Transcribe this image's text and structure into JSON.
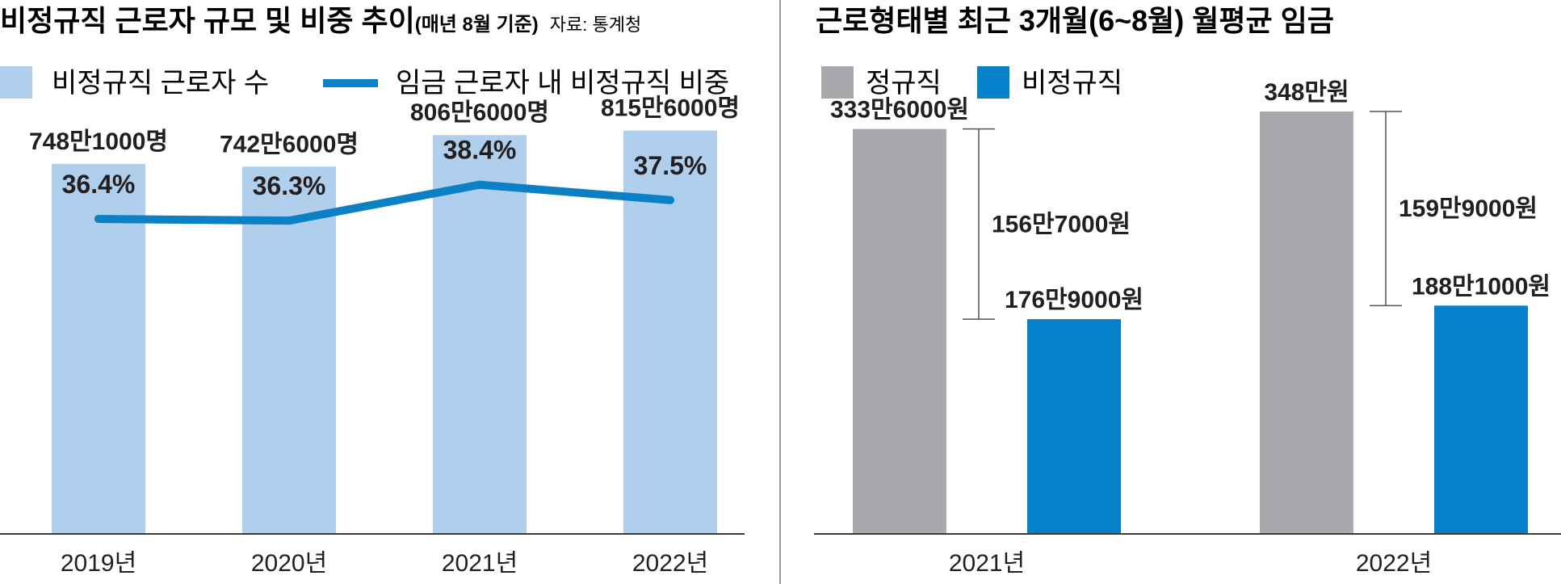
{
  "left_title": {
    "main": "비정규직 근로자 규모 및 비중 추이",
    "note": "(매년 8월 기준)",
    "source": "자료: 통계청"
  },
  "right_title": {
    "main": "근로형태별 최근 3개월(6~8월) 월평균 임금"
  },
  "colors": {
    "light_bar": "#b0cfec",
    "line": "#0b80c5",
    "regular": "#a7a9ac",
    "nonregular": "#0681c9",
    "axis": "#3a3a3a",
    "text": "#231f20"
  },
  "chart_data": [
    {
      "type": "bar",
      "title": "비정규직 근로자 규모 및 비중 추이",
      "categories": [
        "2019년",
        "2020년",
        "2021년",
        "2022년"
      ],
      "series": [
        {
          "name": "비정규직 근로자 수",
          "values": [
            7481000,
            7426000,
            8066000,
            8156000
          ],
          "labels": [
            "748만1000명",
            "742만6000명",
            "806만6000명",
            "815만6000명"
          ]
        },
        {
          "name": "임금 근로자 내 비정규직 비중",
          "type": "line",
          "values": [
            36.4,
            36.3,
            38.4,
            37.5
          ],
          "labels": [
            "36.4%",
            "36.3%",
            "38.4%",
            "37.5%"
          ]
        }
      ],
      "ylim_count": [
        0,
        9000000
      ],
      "ylim_pct": [
        18,
        44
      ],
      "xlabel": "",
      "ylabel": ""
    },
    {
      "type": "bar",
      "title": "근로형태별 최근 3개월(6~8월) 월평균 임금",
      "categories": [
        "2021년",
        "2022년"
      ],
      "series": [
        {
          "name": "정규직",
          "values": [
            3336000,
            3480000
          ],
          "labels": [
            "333만6000원",
            "348만원"
          ]
        },
        {
          "name": "비정규직",
          "values": [
            1769000,
            1881000
          ],
          "labels": [
            "176만9000원",
            "188만1000원"
          ]
        }
      ],
      "differences": [
        {
          "value": 1567000,
          "label": "156만7000원"
        },
        {
          "value": 1599000,
          "label": "159만9000원"
        }
      ],
      "ylim": [
        0,
        3600000
      ],
      "xlabel": "",
      "ylabel": ""
    }
  ]
}
